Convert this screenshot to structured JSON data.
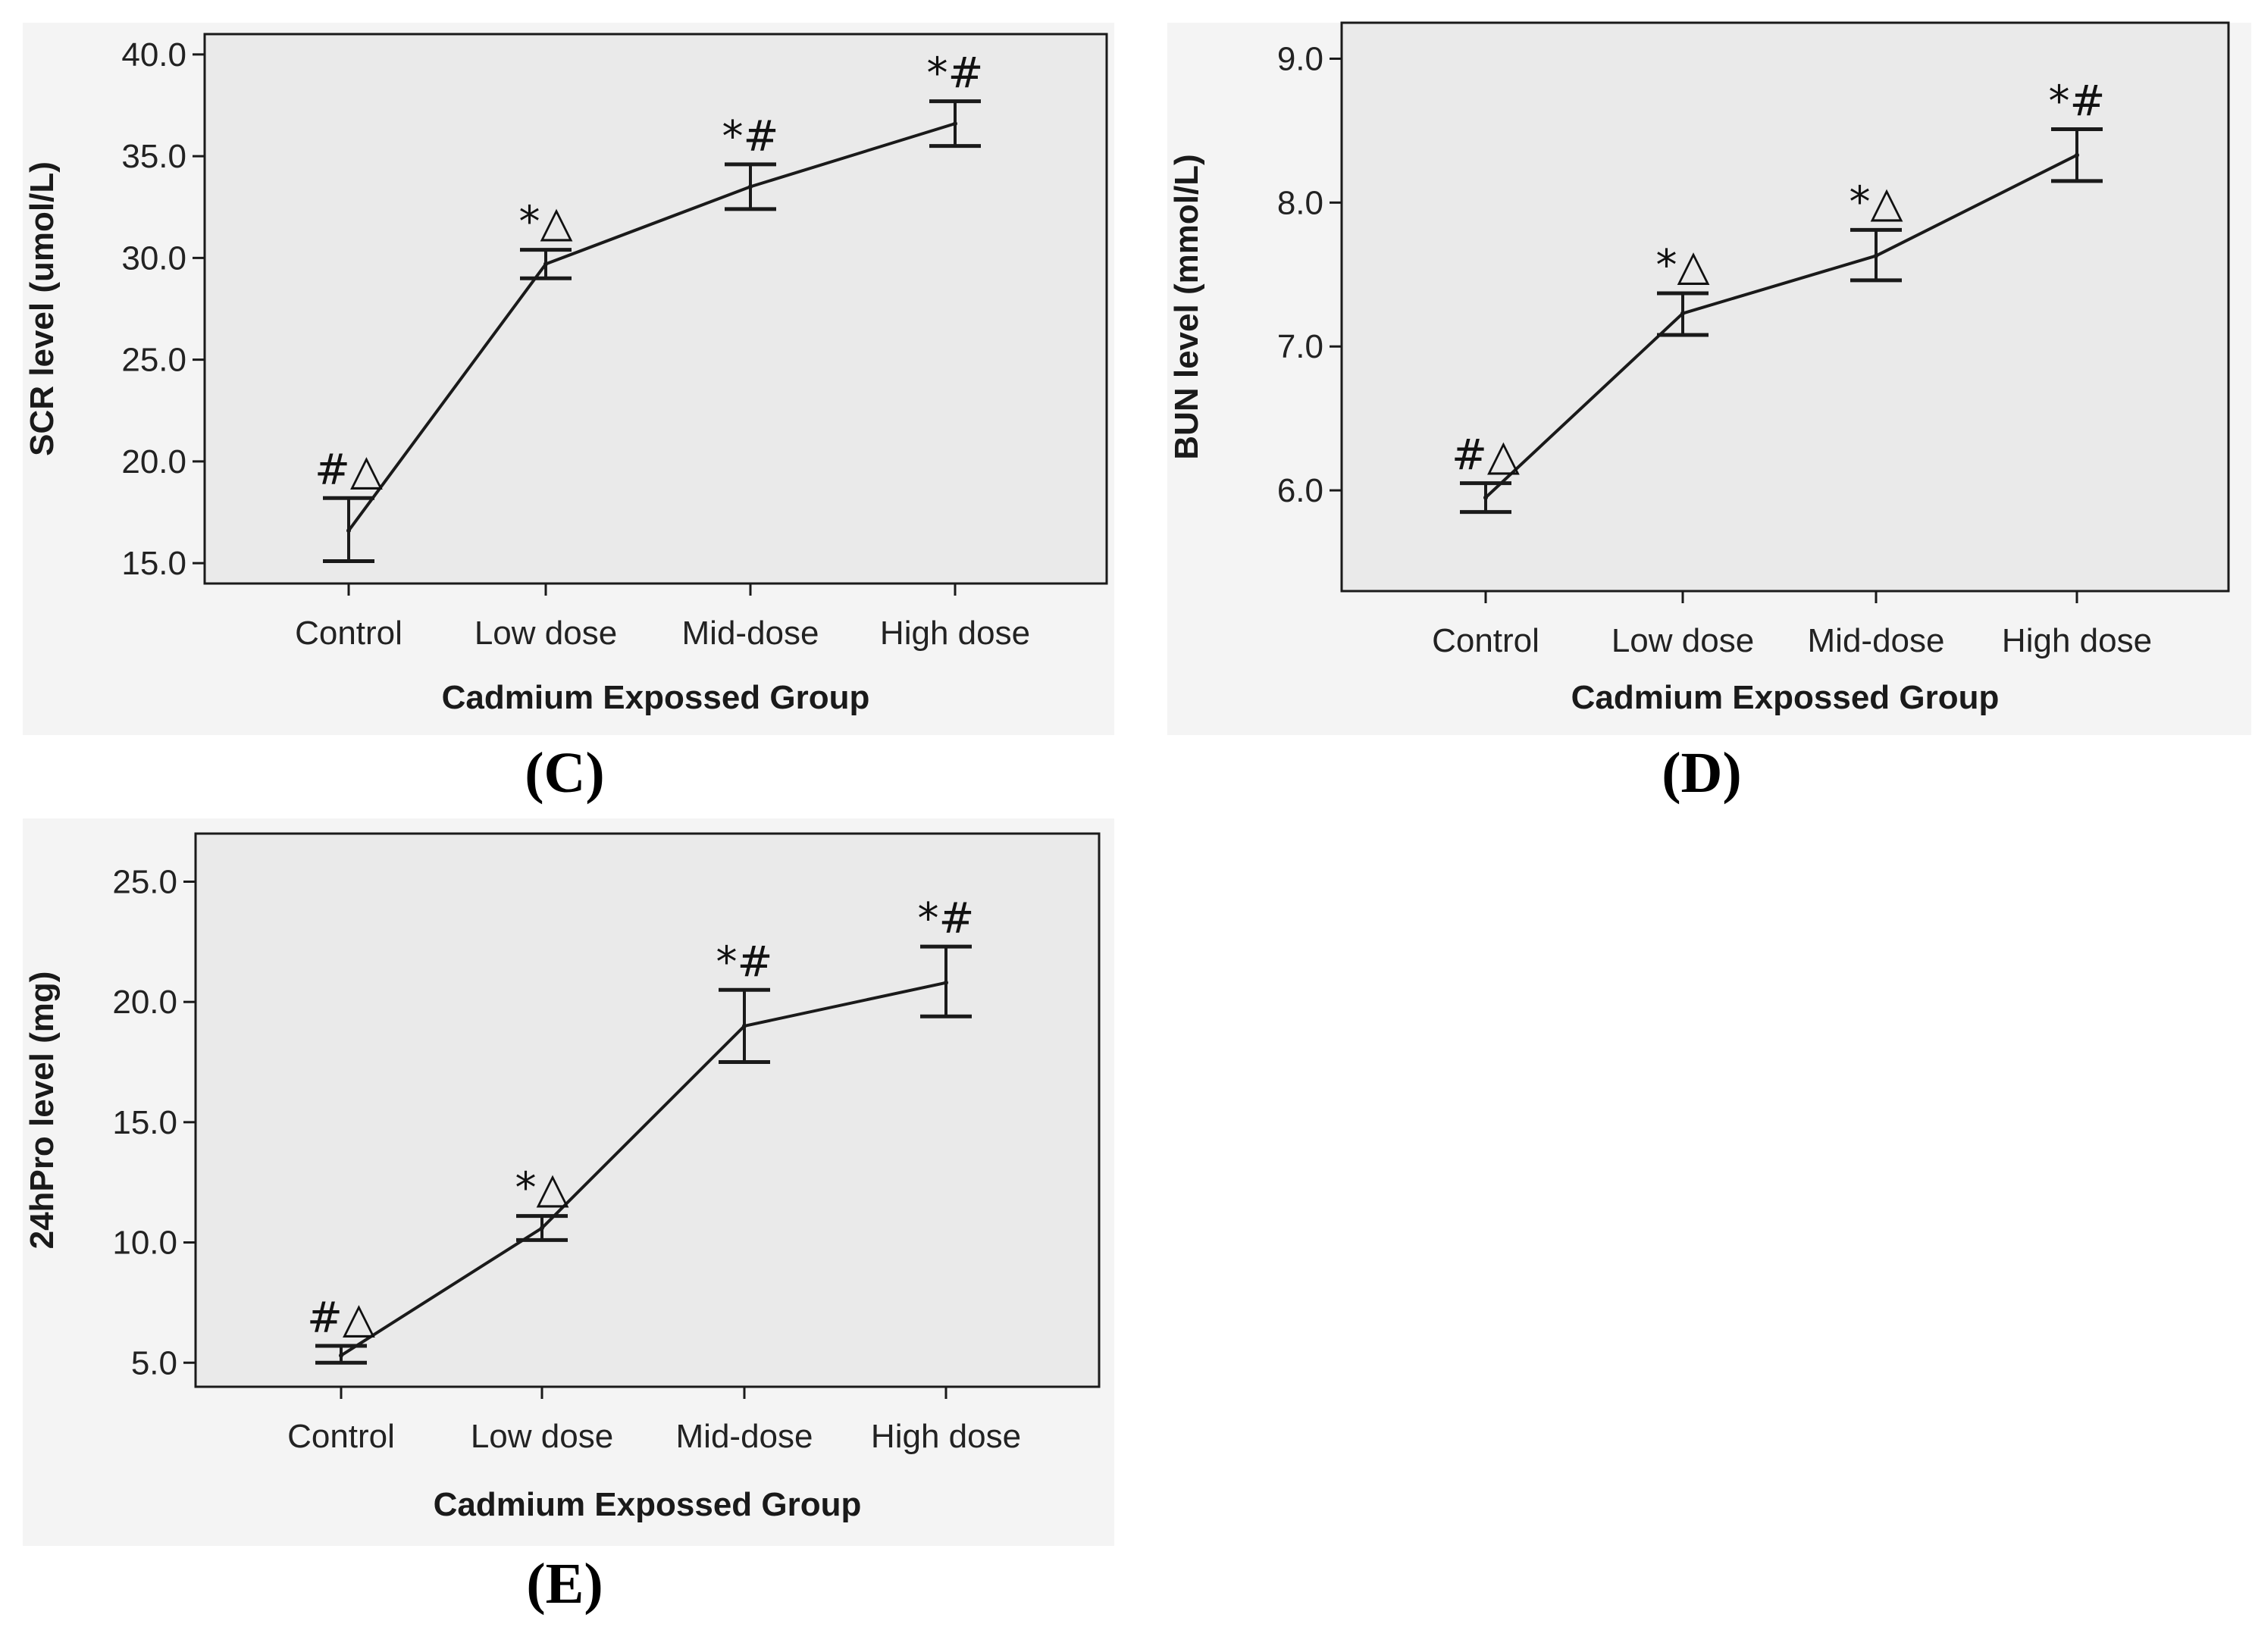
{
  "chart_data": [
    {
      "type": "line",
      "panel_label": "(C)",
      "panel_letter": "C",
      "title": "",
      "xlabel": "Cadmium Expossed Group",
      "ylabel": "SCR level (umol/L)",
      "categories": [
        "Control",
        "Low dose",
        "Mid-dose",
        "High dose"
      ],
      "values": [
        16.6,
        29.7,
        33.5,
        36.6
      ],
      "error_low": [
        15.1,
        29.0,
        32.4,
        35.5
      ],
      "error_high": [
        18.2,
        30.4,
        34.6,
        37.7
      ],
      "annotations": [
        "#△",
        "*△",
        "*#",
        "*#"
      ],
      "ylim": [
        14.0,
        41.0
      ],
      "yticks": [
        15.0,
        20.0,
        25.0,
        30.0,
        35.0,
        40.0
      ],
      "ytick_labels": [
        "15.0",
        "20.0",
        "25.0",
        "30.0",
        "35.0",
        "40.0"
      ],
      "grid": false
    },
    {
      "type": "line",
      "panel_label": "(D)",
      "panel_letter": "D",
      "title": "",
      "xlabel": "Cadmium Expossed Group",
      "ylabel": "BUN level (mmol/L)",
      "categories": [
        "Control",
        "Low dose",
        "Mid-dose",
        "High dose"
      ],
      "values": [
        5.95,
        7.23,
        7.63,
        8.33
      ],
      "error_low": [
        5.85,
        7.08,
        7.46,
        8.15
      ],
      "error_high": [
        6.05,
        7.37,
        7.81,
        8.51
      ],
      "annotations": [
        "#△",
        "*△",
        "*△",
        "*#"
      ],
      "ylim": [
        5.3,
        9.25
      ],
      "yticks": [
        6.0,
        7.0,
        8.0,
        9.0
      ],
      "ytick_labels": [
        "6.0",
        "7.0",
        "8.0",
        "9.0"
      ],
      "grid": false
    },
    {
      "type": "line",
      "panel_label": "(E)",
      "panel_letter": "E",
      "title": "",
      "xlabel": "Cadmium Expossed Group",
      "ylabel": "24hPro level (mg)",
      "categories": [
        "Control",
        "Low dose",
        "Mid-dose",
        "High dose"
      ],
      "values": [
        5.3,
        10.6,
        19.0,
        20.8
      ],
      "error_low": [
        5.0,
        10.1,
        17.5,
        19.4
      ],
      "error_high": [
        5.7,
        11.1,
        20.5,
        22.3
      ],
      "annotations": [
        "#△",
        "*△",
        "*#",
        "*#"
      ],
      "ylim": [
        4.0,
        27.0
      ],
      "yticks": [
        5.0,
        10.0,
        15.0,
        20.0,
        25.0
      ],
      "ytick_labels": [
        "5.0",
        "10.0",
        "15.0",
        "20.0",
        "25.0"
      ],
      "grid": false
    }
  ],
  "colors": {
    "plot_bg": "#eaeaea",
    "outer_bg": "#f4f4f4",
    "ink": "#1a1a1a"
  }
}
